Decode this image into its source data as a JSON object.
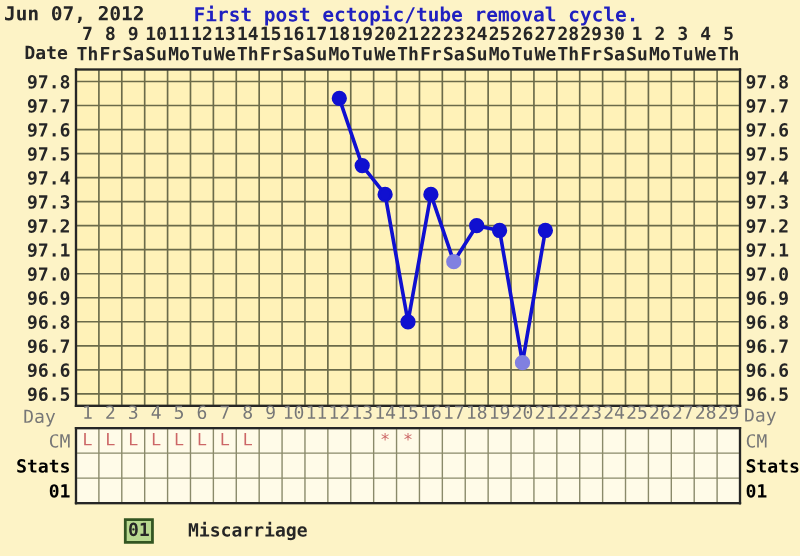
{
  "chart_data": [
    {
      "type": "line",
      "title": "First post ectopic/tube removal cycle.",
      "subtitle": "Jun 07, 2012",
      "categories": [
        "7\nTh",
        "8\nFr",
        "9\nSa",
        "10\nSu",
        "11\nMo",
        "12\nTu",
        "13\nWe",
        "14\nTh",
        "15\nFr",
        "16\nSa",
        "17\nSu",
        "18\nMo",
        "19\nTu",
        "20\nWe",
        "21\nTh",
        "22\nFr",
        "23\nSa",
        "24\nSu",
        "25\nMo",
        "26\nTu",
        "27\nWe",
        "28\nTh",
        "29\nFr",
        "30\nSa",
        "1\nSu",
        "2\nMo",
        "3\nTu",
        "4\nWe",
        "5\nTh"
      ],
      "xlabel": "Date",
      "ylim": [
        96.45,
        97.85
      ],
      "yticks": [
        {
          "value": 96.5,
          "label": "96.5"
        },
        {
          "value": 96.6,
          "label": "96.6"
        },
        {
          "value": 96.7,
          "label": "96.7"
        },
        {
          "value": 96.8,
          "label": "96.8"
        },
        {
          "value": 96.9,
          "label": "96.9"
        },
        {
          "value": 97.0,
          "label": "97.0"
        },
        {
          "value": 97.1,
          "label": "97.1"
        },
        {
          "value": 97.2,
          "label": "97.2"
        },
        {
          "value": 97.3,
          "label": "97.3"
        },
        {
          "value": 97.4,
          "label": "97.4"
        },
        {
          "value": 97.5,
          "label": "97.5"
        },
        {
          "value": 97.6,
          "label": "97.6"
        },
        {
          "value": 97.7,
          "label": "97.7"
        },
        {
          "value": 97.8,
          "label": "97.8"
        }
      ],
      "y2lim": [
        96.45,
        97.85
      ],
      "y2ticks": [
        {
          "value": 96.5,
          "label": "96.5"
        },
        {
          "value": 96.6,
          "label": "96.6"
        },
        {
          "value": 96.7,
          "label": "96.7"
        },
        {
          "value": 96.8,
          "label": "96.8"
        },
        {
          "value": 96.9,
          "label": "96.9"
        },
        {
          "value": 97.0,
          "label": "97.0"
        },
        {
          "value": 97.1,
          "label": "97.1"
        },
        {
          "value": 97.2,
          "label": "97.2"
        },
        {
          "value": 97.3,
          "label": "97.3"
        },
        {
          "value": 97.4,
          "label": "97.4"
        },
        {
          "value": 97.5,
          "label": "97.5"
        },
        {
          "value": 97.6,
          "label": "97.6"
        },
        {
          "value": 97.7,
          "label": "97.7"
        },
        {
          "value": 97.8,
          "label": "97.8"
        }
      ],
      "series": [
        {
          "color": "#1010d0",
          "values": [
            null,
            null,
            null,
            null,
            null,
            null,
            null,
            null,
            null,
            null,
            null,
            97.73,
            97.45,
            97.33,
            96.8,
            97.33,
            97.05,
            97.2,
            97.18,
            96.63,
            97.18,
            null,
            null,
            null,
            null,
            null,
            null,
            null,
            null
          ],
          "colors": [
            "#1010d0",
            "#1010d0",
            "#1010d0",
            "#1010d0",
            "#1010d0",
            "#1010d0",
            "#1010d0",
            "#1010d0",
            "#1010d0",
            "#1010d0",
            "#1010d0",
            "#1010d0",
            "#1010d0",
            "#1010d0",
            "#1010d0",
            "#1010d0",
            "#8080e0",
            "#1010d0",
            "#1010d0",
            "#8080e0",
            "#1010d0",
            "#1010d0",
            "#1010d0",
            "#1010d0",
            "#1010d0",
            "#1010d0",
            "#1010d0",
            "#1010d0",
            "#1010d0"
          ]
        }
      ],
      "marker": "circle",
      "line_style": "solid",
      "grid": true
    },
    {
      "type": "heatmap",
      "xlabel": "Day",
      "categories": [
        "1",
        "2",
        "3",
        "4",
        "5",
        "6",
        "7",
        "8",
        "9",
        "10",
        "11",
        "12",
        "13",
        "14",
        "15",
        "16",
        "17",
        "18",
        "19",
        "20",
        "21",
        "22",
        "23",
        "24",
        "25",
        "26",
        "27",
        "28",
        "29"
      ],
      "y_categories": [
        "CM",
        "Stats",
        "01"
      ],
      "y2_categories": [
        "CM",
        "Stats",
        "01"
      ],
      "cells": [
        [
          null,
          null,
          null,
          null,
          null,
          null,
          null,
          null,
          null,
          null,
          null,
          null,
          null,
          null,
          null,
          null,
          null,
          null,
          null,
          null,
          null,
          null,
          null,
          null,
          null,
          null,
          null,
          null,
          null
        ],
        [
          null,
          null,
          null,
          null,
          null,
          null,
          null,
          null,
          null,
          null,
          null,
          null,
          null,
          null,
          null,
          null,
          null,
          null,
          null,
          null,
          null,
          null,
          null,
          null,
          null,
          null,
          null,
          null,
          null
        ],
        [
          null,
          null,
          null,
          null,
          null,
          null,
          null,
          null,
          null,
          null,
          null,
          null,
          null,
          null,
          null,
          null,
          null,
          null,
          null,
          null,
          null,
          null,
          null,
          null,
          null,
          null,
          null,
          null,
          null
        ]
      ],
      "cell_labels": [
        [
          "L",
          "L",
          "L",
          "L",
          "L",
          "L",
          "L",
          "L",
          null,
          null,
          null,
          null,
          null,
          "*",
          "*",
          null,
          null,
          null,
          null,
          null,
          null,
          null,
          null,
          null,
          null,
          null,
          null,
          null,
          null
        ],
        [
          null,
          null,
          null,
          null,
          null,
          null,
          null,
          null,
          null,
          null,
          null,
          null,
          null,
          null,
          null,
          null,
          null,
          null,
          null,
          null,
          null,
          null,
          null,
          null,
          null,
          null,
          null,
          null,
          null
        ],
        [
          null,
          null,
          null,
          null,
          null,
          null,
          null,
          null,
          null,
          null,
          null,
          null,
          null,
          null,
          null,
          null,
          null,
          null,
          null,
          null,
          null,
          null,
          null,
          null,
          null,
          null,
          null,
          null,
          null
        ]
      ],
      "annotations": [
        "01",
        "Miscarriage"
      ]
    }
  ]
}
